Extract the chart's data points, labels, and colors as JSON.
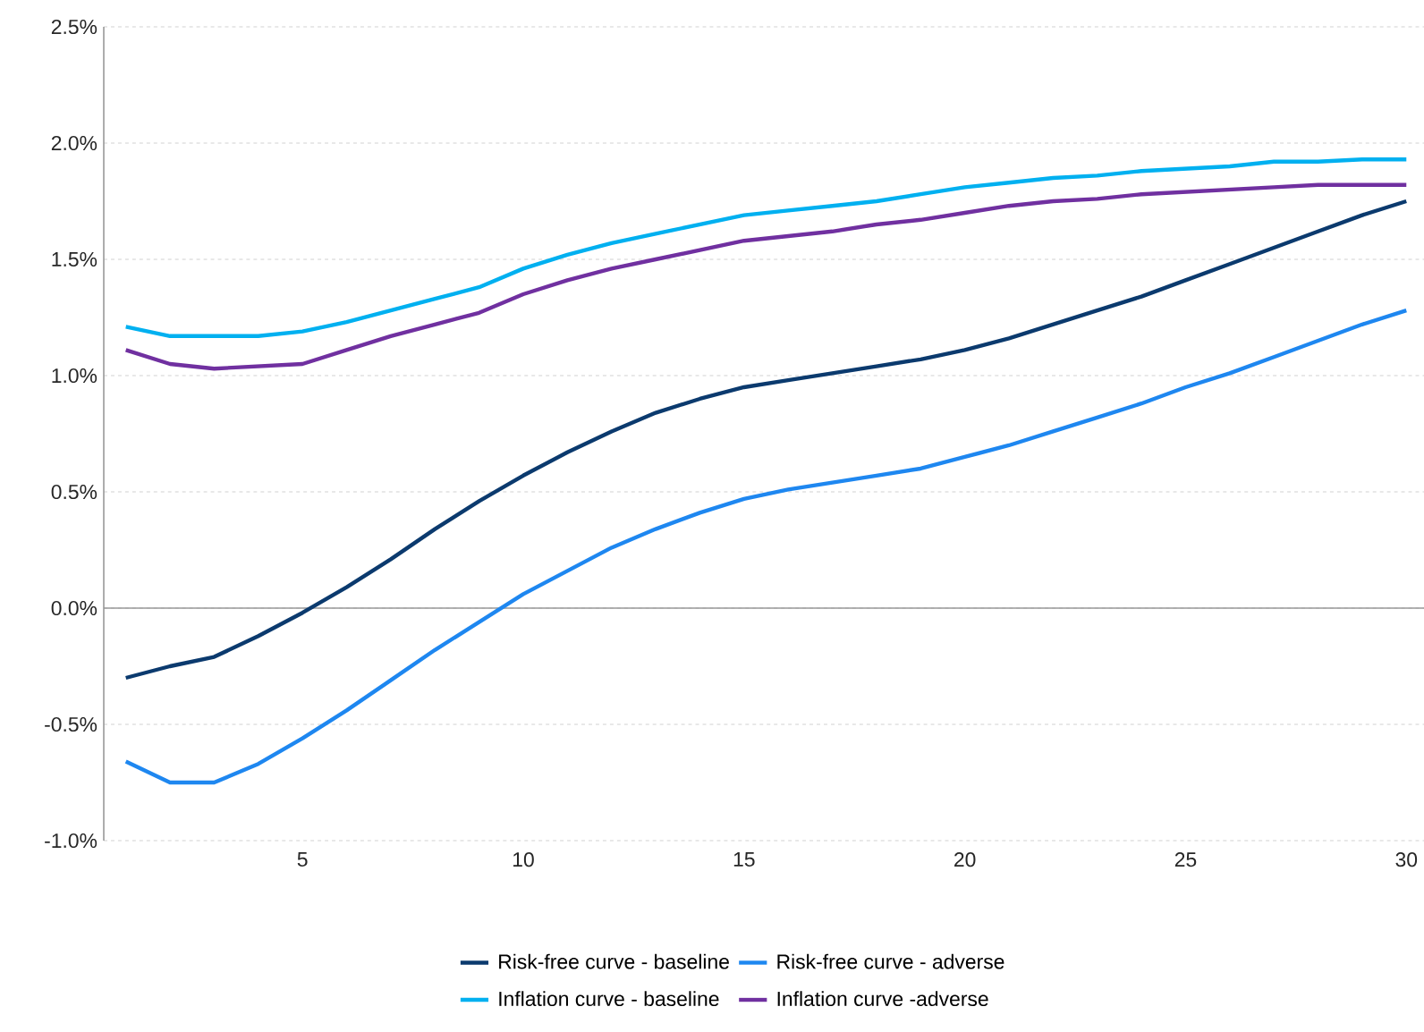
{
  "chart_data": {
    "type": "line",
    "x": [
      1,
      2,
      3,
      4,
      5,
      6,
      7,
      8,
      9,
      10,
      11,
      12,
      13,
      14,
      15,
      16,
      17,
      18,
      19,
      20,
      21,
      22,
      23,
      24,
      25,
      26,
      27,
      28,
      29,
      30
    ],
    "xlim": [
      0.5,
      30.4
    ],
    "xticks": [
      5,
      10,
      15,
      20,
      25,
      30
    ],
    "ylim": [
      -1.0,
      2.5
    ],
    "yticks": [
      {
        "value": -1.0,
        "label": "-1.0%"
      },
      {
        "value": -0.5,
        "label": "-0.5%"
      },
      {
        "value": 0.0,
        "label": "0.0%"
      },
      {
        "value": 0.5,
        "label": "0.5%"
      },
      {
        "value": 1.0,
        "label": "1.0%"
      },
      {
        "value": 1.5,
        "label": "1.5%"
      },
      {
        "value": 2.0,
        "label": "2.0%"
      },
      {
        "value": 2.5,
        "label": "2.5%"
      }
    ],
    "grid": "y",
    "legend": "bottom",
    "series": [
      {
        "name": "Risk-free curve - baseline",
        "color": "#0b3a6e",
        "values": [
          -0.3,
          -0.25,
          -0.21,
          -0.12,
          -0.02,
          0.09,
          0.21,
          0.34,
          0.46,
          0.57,
          0.67,
          0.76,
          0.84,
          0.9,
          0.95,
          0.98,
          1.01,
          1.04,
          1.07,
          1.11,
          1.16,
          1.22,
          1.28,
          1.34,
          1.41,
          1.48,
          1.55,
          1.62,
          1.69,
          1.75
        ]
      },
      {
        "name": "Risk-free curve - adverse",
        "color": "#1e87f0",
        "values": [
          -0.66,
          -0.75,
          -0.75,
          -0.67,
          -0.56,
          -0.44,
          -0.31,
          -0.18,
          -0.06,
          0.06,
          0.16,
          0.26,
          0.34,
          0.41,
          0.47,
          0.51,
          0.54,
          0.57,
          0.6,
          0.65,
          0.7,
          0.76,
          0.82,
          0.88,
          0.95,
          1.01,
          1.08,
          1.15,
          1.22,
          1.28
        ]
      },
      {
        "name": "Inflation curve - baseline",
        "color": "#00b0f0",
        "values": [
          1.21,
          1.17,
          1.17,
          1.17,
          1.19,
          1.23,
          1.28,
          1.33,
          1.38,
          1.46,
          1.52,
          1.57,
          1.61,
          1.65,
          1.69,
          1.71,
          1.73,
          1.75,
          1.78,
          1.81,
          1.83,
          1.85,
          1.86,
          1.88,
          1.89,
          1.9,
          1.92,
          1.92,
          1.93,
          1.93
        ]
      },
      {
        "name": "Inflation curve -adverse",
        "color": "#7030a0",
        "values": [
          1.11,
          1.05,
          1.03,
          1.04,
          1.05,
          1.11,
          1.17,
          1.22,
          1.27,
          1.35,
          1.41,
          1.46,
          1.5,
          1.54,
          1.58,
          1.6,
          1.62,
          1.65,
          1.67,
          1.7,
          1.73,
          1.75,
          1.76,
          1.78,
          1.79,
          1.8,
          1.81,
          1.82,
          1.82,
          1.82
        ]
      }
    ]
  }
}
